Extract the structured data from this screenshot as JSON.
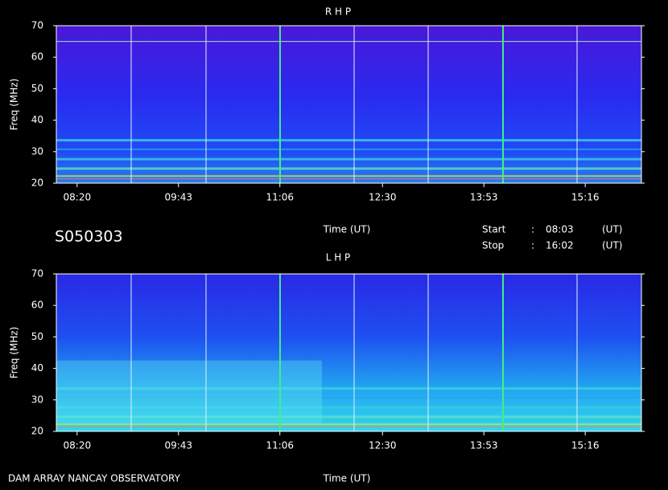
{
  "chart_data": [
    {
      "type": "spectrogram",
      "title": "R H P",
      "ylabel": "Freq (MHz)",
      "xlabel": "Time (UT)",
      "ylim": [
        20,
        70
      ],
      "yticks": [
        20,
        30,
        40,
        50,
        60,
        70
      ],
      "xlim": [
        483,
        962
      ],
      "xticks": [
        {
          "value": 500,
          "label": "08:20"
        },
        {
          "value": 583,
          "label": "09:43"
        },
        {
          "value": 666,
          "label": "11:06"
        },
        {
          "value": 750,
          "label": "12:30"
        },
        {
          "value": 833,
          "label": "13:53"
        },
        {
          "value": 916,
          "label": "15:16"
        }
      ]
    },
    {
      "type": "spectrogram",
      "title": "L H P",
      "ylabel": "Freq (MHz)",
      "xlabel": "Time (UT)",
      "ylim": [
        20,
        70
      ],
      "yticks": [
        20,
        30,
        40,
        50,
        60,
        70
      ],
      "xlim": [
        483,
        962
      ],
      "xticks": [
        {
          "value": 500,
          "label": "08:20"
        },
        {
          "value": 583,
          "label": "09:43"
        },
        {
          "value": 666,
          "label": "11:06"
        },
        {
          "value": 750,
          "label": "12:30"
        },
        {
          "value": 833,
          "label": "13:53"
        },
        {
          "value": 916,
          "label": "15:16"
        }
      ]
    }
  ],
  "info": {
    "id": "S050303",
    "start_label": "Start",
    "stop_label": "Stop",
    "separator": ":",
    "start": "08:03",
    "stop": "16:02",
    "unit": "(UT)"
  },
  "footer": "DAM ARRAY  NANCAY OBSERVATORY"
}
